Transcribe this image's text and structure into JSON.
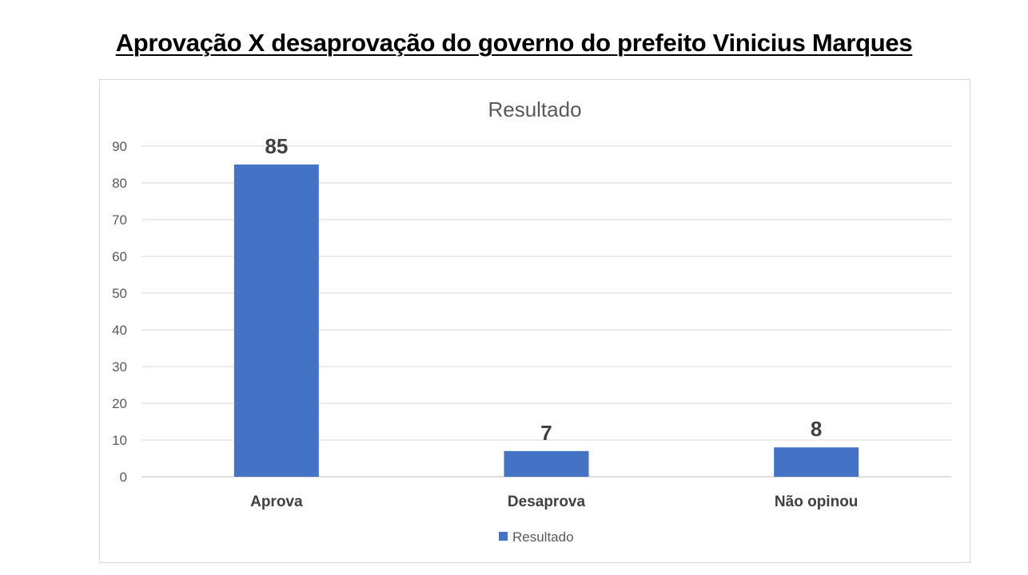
{
  "page": {
    "title": "Aprovação X desaprovação do governo do prefeito Vinicius Marques"
  },
  "chart_data": {
    "type": "bar",
    "title": "Resultado",
    "categories": [
      "Aprova",
      "Desaprova",
      "Não opinou"
    ],
    "series": [
      {
        "name": "Resultado",
        "values": [
          85,
          7,
          8
        ],
        "color": "#4472C4"
      }
    ],
    "data_labels": [
      "85",
      "7",
      "8"
    ],
    "ylim": [
      0,
      90
    ],
    "yticks": [
      0,
      10,
      20,
      30,
      40,
      50,
      60,
      70,
      80,
      90
    ],
    "xlabel": "",
    "ylabel": "",
    "grid": true,
    "legend": "bottom"
  }
}
